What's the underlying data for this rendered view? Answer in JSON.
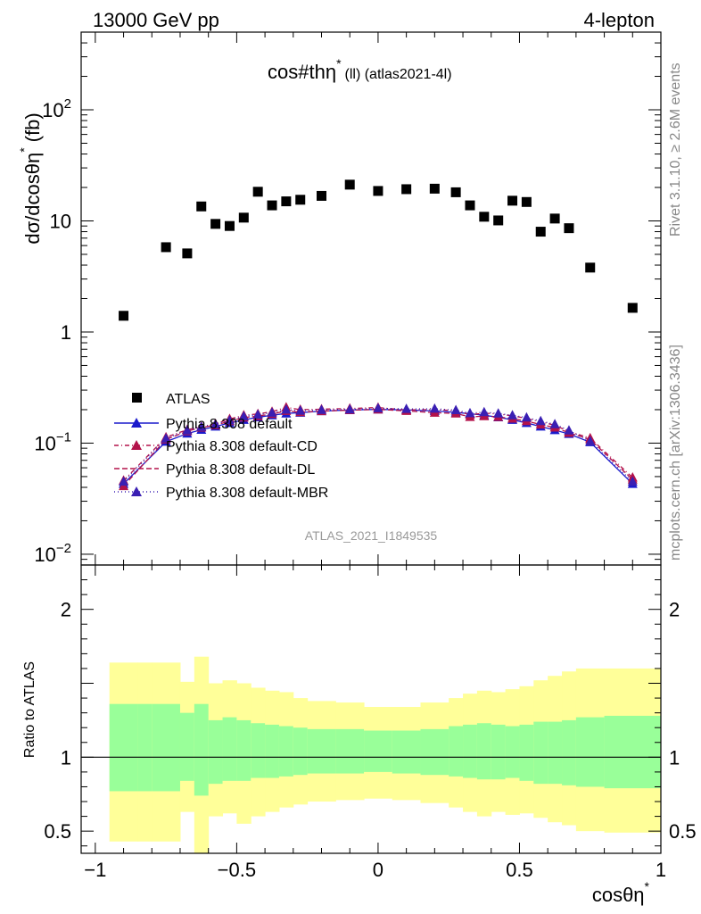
{
  "header": {
    "left": "13000 GeV pp",
    "right": "4-lepton"
  },
  "side": {
    "top": "Rivet 3.1.10, ≥ 2.6M events",
    "bottom": "mcplots.cern.ch [arXiv:1306.3436]"
  },
  "watermark": "ATLAS_2021_I1849535",
  "chart_data": {
    "type": "scatter",
    "title": {
      "main": "cos#thη",
      "sup": "*",
      "rest": "(ll) (atlas2021-4l)"
    },
    "xlabel": {
      "main": "cosθη",
      "sup": "*"
    },
    "ylabel": {
      "main": "dσ/dcosθη",
      "sup": "*",
      "unit": "(fb)"
    },
    "ratio_ylabel": "Ratio to ATLAS",
    "xlim": [
      -1.05,
      1.0
    ],
    "ylim": [
      0.008,
      500
    ],
    "yscale": "log",
    "ratio_ylim": [
      0.35,
      2.3
    ],
    "x_ticks": [
      {
        "v": -1,
        "label": "−1"
      },
      {
        "v": -0.5,
        "label": "−0.5"
      },
      {
        "v": 0,
        "label": "0"
      },
      {
        "v": 0.5,
        "label": "0.5"
      },
      {
        "v": 1,
        "label": "1"
      }
    ],
    "y_ticks": [
      {
        "v": 0.01,
        "base": "10",
        "exp": "−2"
      },
      {
        "v": 0.1,
        "base": "10",
        "exp": "−1"
      },
      {
        "v": 1,
        "base": "1",
        "exp": ""
      },
      {
        "v": 10,
        "base": "10",
        "exp": ""
      },
      {
        "v": 100,
        "base": "10",
        "exp": "2"
      }
    ],
    "ratio_ticks": [
      {
        "v": 0.5,
        "label": "0.5"
      },
      {
        "v": 1,
        "label": "1"
      },
      {
        "v": 2,
        "label": "2"
      }
    ],
    "legend_position": "lower-left",
    "series": [
      {
        "name": "ATLAS",
        "marker": "square",
        "color": "#000000",
        "x": [
          -0.9,
          -0.75,
          -0.675,
          -0.625,
          -0.575,
          -0.525,
          -0.475,
          -0.425,
          -0.375,
          -0.325,
          -0.275,
          -0.2,
          -0.1,
          0.0,
          0.1,
          0.2,
          0.275,
          0.325,
          0.375,
          0.425,
          0.475,
          0.525,
          0.575,
          0.625,
          0.675,
          0.75,
          0.9
        ],
        "y": [
          1.4,
          5.8,
          5.1,
          13.5,
          9.4,
          9.0,
          10.7,
          18.3,
          13.8,
          15.0,
          15.5,
          16.8,
          21.2,
          18.6,
          19.3,
          19.5,
          18.1,
          13.8,
          10.9,
          10.1,
          15.2,
          14.8,
          8.0,
          10.5,
          8.6,
          3.8,
          1.65
        ]
      },
      {
        "name": "Pythia 8.308 default",
        "marker": "triangle",
        "color": "#1a1acc",
        "line": "solid",
        "x": [
          -0.9,
          -0.75,
          -0.675,
          -0.625,
          -0.575,
          -0.525,
          -0.475,
          -0.425,
          -0.375,
          -0.325,
          -0.275,
          -0.2,
          -0.1,
          0.0,
          0.1,
          0.2,
          0.275,
          0.325,
          0.375,
          0.425,
          0.475,
          0.525,
          0.575,
          0.625,
          0.675,
          0.75,
          0.9
        ],
        "y": [
          0.043,
          0.103,
          0.122,
          0.132,
          0.141,
          0.152,
          0.162,
          0.171,
          0.178,
          0.185,
          0.188,
          0.194,
          0.199,
          0.201,
          0.199,
          0.195,
          0.189,
          0.184,
          0.178,
          0.171,
          0.162,
          0.152,
          0.141,
          0.131,
          0.121,
          0.102,
          0.043
        ]
      },
      {
        "name": "Pythia 8.308 default-CD",
        "marker": "triangle",
        "color": "#b3124a",
        "line": "dashdot",
        "x": [
          -0.9,
          -0.75,
          -0.675,
          -0.625,
          -0.575,
          -0.525,
          -0.475,
          -0.425,
          -0.375,
          -0.325,
          -0.275,
          -0.2,
          -0.1,
          0.0,
          0.1,
          0.2,
          0.275,
          0.325,
          0.375,
          0.425,
          0.475,
          0.525,
          0.575,
          0.625,
          0.675,
          0.75,
          0.9
        ],
        "y": [
          0.046,
          0.113,
          0.132,
          0.141,
          0.149,
          0.165,
          0.178,
          0.183,
          0.192,
          0.21,
          0.2,
          0.202,
          0.205,
          0.209,
          0.199,
          0.2,
          0.196,
          0.18,
          0.186,
          0.183,
          0.176,
          0.167,
          0.155,
          0.145,
          0.127,
          0.111,
          0.049
        ]
      },
      {
        "name": "Pythia 8.308 default-DL",
        "marker": "triangle",
        "color": "#b3124a",
        "line": "dashed",
        "x": [
          -0.9,
          -0.75,
          -0.675,
          -0.625,
          -0.575,
          -0.525,
          -0.475,
          -0.425,
          -0.375,
          -0.325,
          -0.275,
          -0.2,
          -0.1,
          0.0,
          0.1,
          0.2,
          0.275,
          0.325,
          0.375,
          0.425,
          0.475,
          0.525,
          0.575,
          0.625,
          0.675,
          0.75,
          0.9
        ],
        "y": [
          0.041,
          0.108,
          0.128,
          0.138,
          0.145,
          0.158,
          0.17,
          0.175,
          0.183,
          0.195,
          0.19,
          0.194,
          0.198,
          0.201,
          0.195,
          0.188,
          0.185,
          0.172,
          0.175,
          0.172,
          0.166,
          0.158,
          0.147,
          0.138,
          0.124,
          0.108,
          0.047
        ]
      },
      {
        "name": "Pythia 8.308 default-MBR",
        "marker": "triangle",
        "color": "#3a1fb3",
        "line": "dotted",
        "x": [
          -0.9,
          -0.75,
          -0.675,
          -0.625,
          -0.575,
          -0.525,
          -0.475,
          -0.425,
          -0.375,
          -0.325,
          -0.275,
          -0.2,
          -0.1,
          0.0,
          0.1,
          0.2,
          0.275,
          0.325,
          0.375,
          0.425,
          0.475,
          0.525,
          0.575,
          0.625,
          0.675,
          0.75,
          0.9
        ],
        "y": [
          0.045,
          0.11,
          0.13,
          0.14,
          0.148,
          0.16,
          0.174,
          0.18,
          0.188,
          0.2,
          0.196,
          0.199,
          0.201,
          0.206,
          0.203,
          0.204,
          0.198,
          0.186,
          0.19,
          0.185,
          0.178,
          0.17,
          0.158,
          0.148,
          0.13,
          0.104,
          0.045
        ]
      }
    ],
    "ratio_bands": {
      "edges": [
        -0.95,
        -0.85,
        -0.8,
        -0.7,
        -0.65,
        -0.6,
        -0.55,
        -0.5,
        -0.45,
        -0.4,
        -0.35,
        -0.3,
        -0.25,
        -0.15,
        -0.05,
        0.05,
        0.15,
        0.25,
        0.3,
        0.35,
        0.4,
        0.45,
        0.5,
        0.55,
        0.6,
        0.65,
        0.7,
        0.8,
        1.0
      ],
      "stat": [
        [
          0.77,
          1.36
        ],
        [
          0.77,
          1.36
        ],
        [
          0.77,
          1.36
        ],
        [
          0.84,
          1.3
        ],
        [
          0.74,
          1.36
        ],
        [
          0.82,
          1.25
        ],
        [
          0.84,
          1.27
        ],
        [
          0.84,
          1.25
        ],
        [
          0.86,
          1.23
        ],
        [
          0.86,
          1.22
        ],
        [
          0.87,
          1.21
        ],
        [
          0.88,
          1.2
        ],
        [
          0.89,
          1.19
        ],
        [
          0.89,
          1.19
        ],
        [
          0.9,
          1.18
        ],
        [
          0.89,
          1.18
        ],
        [
          0.88,
          1.19
        ],
        [
          0.87,
          1.21
        ],
        [
          0.86,
          1.22
        ],
        [
          0.85,
          1.23
        ],
        [
          0.85,
          1.22
        ],
        [
          0.86,
          1.21
        ],
        [
          0.84,
          1.22
        ],
        [
          0.82,
          1.24
        ],
        [
          0.82,
          1.24
        ],
        [
          0.81,
          1.25
        ],
        [
          0.8,
          1.27
        ],
        [
          0.79,
          1.28
        ],
        [
          0.8,
          1.27
        ]
      ],
      "total": [
        [
          0.43,
          1.64
        ],
        [
          0.43,
          1.64
        ],
        [
          0.43,
          1.64
        ],
        [
          0.63,
          1.51
        ],
        [
          0.3,
          1.68
        ],
        [
          0.6,
          1.5
        ],
        [
          0.62,
          1.52
        ],
        [
          0.55,
          1.5
        ],
        [
          0.6,
          1.47
        ],
        [
          0.63,
          1.45
        ],
        [
          0.66,
          1.44
        ],
        [
          0.68,
          1.4
        ],
        [
          0.7,
          1.38
        ],
        [
          0.71,
          1.37
        ],
        [
          0.72,
          1.34
        ],
        [
          0.71,
          1.34
        ],
        [
          0.69,
          1.37
        ],
        [
          0.66,
          1.4
        ],
        [
          0.63,
          1.43
        ],
        [
          0.6,
          1.45
        ],
        [
          0.63,
          1.44
        ],
        [
          0.61,
          1.46
        ],
        [
          0.62,
          1.48
        ],
        [
          0.59,
          1.52
        ],
        [
          0.56,
          1.55
        ],
        [
          0.54,
          1.58
        ],
        [
          0.5,
          1.6
        ],
        [
          0.49,
          1.6
        ],
        [
          0.51,
          1.59
        ]
      ]
    },
    "colors": {
      "stat_band": "#99ff99",
      "total_band": "#ffff99",
      "axis": "#000000"
    }
  }
}
